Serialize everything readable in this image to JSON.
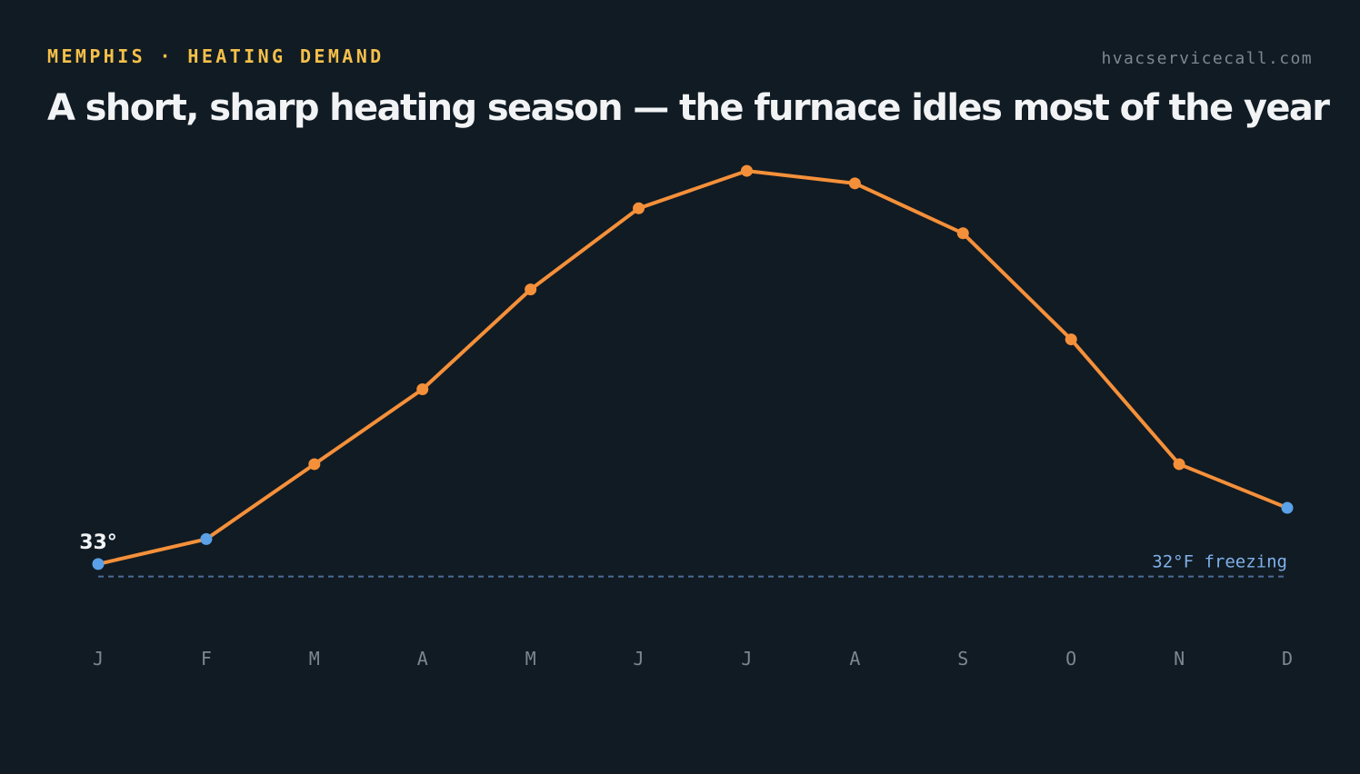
{
  "header": {
    "kicker": "MEMPHIS · HEATING DEMAND",
    "source": "hvacservicecall.com",
    "title": "A short, sharp heating season — the furnace idles most of the year"
  },
  "colors": {
    "background": "#111b23",
    "line": "#f5903a",
    "cold_point": "#5aa1e8",
    "freezing_line": "#4b6c96",
    "kicker": "#f5c04a"
  },
  "chart_data": {
    "type": "line",
    "categories": [
      "J",
      "F",
      "M",
      "A",
      "M",
      "J",
      "J",
      "A",
      "S",
      "O",
      "N",
      "D"
    ],
    "values": [
      33,
      35,
      41,
      47,
      55,
      61.5,
      64.5,
      63.5,
      59.5,
      51,
      41,
      37.5
    ],
    "ylim": [
      22,
      68
    ],
    "y_unit": "°F",
    "reference_line": {
      "value": 32,
      "label": "32°F freezing"
    },
    "annotations": [
      {
        "index": 0,
        "label": "33°"
      }
    ],
    "cold_indices": [
      0,
      1,
      11
    ],
    "grid": false,
    "legend": "none"
  }
}
